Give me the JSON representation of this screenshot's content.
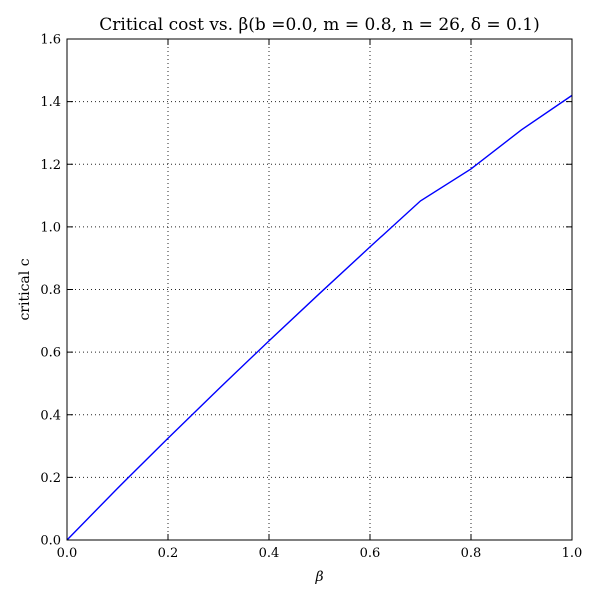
{
  "chart_data": {
    "type": "line",
    "title": "Critical cost vs. β(b =0.0, m = 0.8, n = 26, δ = 0.1)",
    "xlabel": "β",
    "ylabel": "critical c",
    "xlim": [
      0.0,
      1.0
    ],
    "ylim": [
      0.0,
      1.6
    ],
    "xticks": [
      "0.0",
      "0.2",
      "0.4",
      "0.6",
      "0.8",
      "1.0"
    ],
    "yticks": [
      "0.0",
      "0.2",
      "0.4",
      "0.6",
      "0.8",
      "1.0",
      "1.2",
      "1.4",
      "1.6"
    ],
    "grid": true,
    "series": [
      {
        "color": "#0000ff",
        "x": [
          0.0,
          0.1,
          0.2,
          0.3,
          0.4,
          0.5,
          0.6,
          0.7,
          0.8,
          0.9,
          1.0
        ],
        "y": [
          0.0,
          0.165,
          0.325,
          0.482,
          0.636,
          0.787,
          0.936,
          1.083,
          1.185,
          1.31,
          1.42
        ]
      }
    ]
  }
}
